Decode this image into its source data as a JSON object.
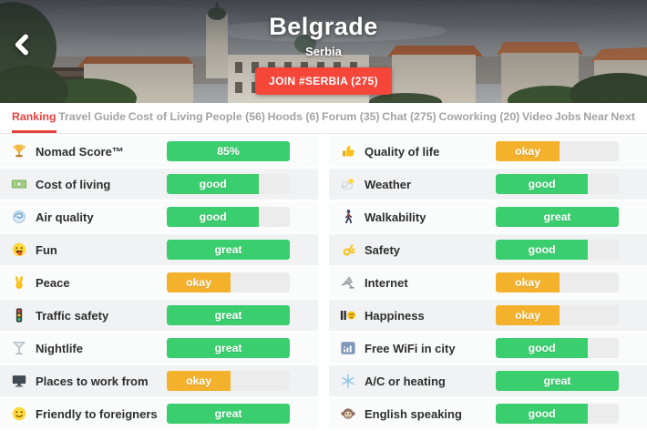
{
  "header": {
    "title": "Belgrade",
    "subtitle": "Serbia",
    "join_label": "JOIN #SERBIA (275)",
    "back_icon": "chevron-left-icon"
  },
  "tabs": [
    {
      "label": "Ranking",
      "active": true
    },
    {
      "label": "Travel Guide",
      "active": false
    },
    {
      "label": "Cost of Living",
      "active": false
    },
    {
      "label": "People (56)",
      "active": false
    },
    {
      "label": "Hoods (6)",
      "active": false
    },
    {
      "label": "Forum (35)",
      "active": false
    },
    {
      "label": "Chat (275)",
      "active": false
    },
    {
      "label": "Coworking (20)",
      "active": false
    },
    {
      "label": "Video",
      "active": false
    },
    {
      "label": "Jobs",
      "active": false
    },
    {
      "label": "Near",
      "active": false
    },
    {
      "label": "Next",
      "active": false
    }
  ],
  "colors": {
    "green": "#3bce6f",
    "yellow": "#f3b12c",
    "track": "#ececec",
    "tab_active": "#e8413c",
    "join_button": "#f5463a"
  },
  "ranking": {
    "columns": [
      [
        {
          "icon": "trophy-icon",
          "label": "Nomad Score™",
          "value": "85%",
          "color": "green",
          "fill_pct": 100
        },
        {
          "icon": "banknote-icon",
          "label": "Cost of living",
          "value": "good",
          "color": "green",
          "fill_pct": 75
        },
        {
          "icon": "air-quality-icon",
          "label": "Air quality",
          "value": "good",
          "color": "green",
          "fill_pct": 75
        },
        {
          "icon": "fun-face-icon",
          "label": "Fun",
          "value": "great",
          "color": "green",
          "fill_pct": 100
        },
        {
          "icon": "peace-hand-icon",
          "label": "Peace",
          "value": "okay",
          "color": "yellow",
          "fill_pct": 52
        },
        {
          "icon": "traffic-light-icon",
          "label": "Traffic safety",
          "value": "great",
          "color": "green",
          "fill_pct": 100
        },
        {
          "icon": "cocktail-icon",
          "label": "Nightlife",
          "value": "great",
          "color": "green",
          "fill_pct": 100
        },
        {
          "icon": "desktop-icon",
          "label": "Places to work from",
          "value": "okay",
          "color": "yellow",
          "fill_pct": 52
        },
        {
          "icon": "smiley-icon",
          "label": "Friendly to foreigners",
          "value": "great",
          "color": "green",
          "fill_pct": 100
        }
      ],
      [
        {
          "icon": "thumbs-up-icon",
          "label": "Quality of life",
          "value": "okay",
          "color": "yellow",
          "fill_pct": 52
        },
        {
          "icon": "cloud-sun-icon",
          "label": "Weather",
          "value": "good",
          "color": "green",
          "fill_pct": 75
        },
        {
          "icon": "walking-icon",
          "label": "Walkability",
          "value": "great",
          "color": "green",
          "fill_pct": 100
        },
        {
          "icon": "ok-hand-icon",
          "label": "Safety",
          "value": "good",
          "color": "green",
          "fill_pct": 75
        },
        {
          "icon": "satellite-icon",
          "label": "Internet",
          "value": "okay",
          "color": "yellow",
          "fill_pct": 52
        },
        {
          "icon": "happiness-face-icon",
          "label": "Happiness",
          "value": "okay",
          "color": "yellow",
          "fill_pct": 52
        },
        {
          "icon": "signal-bars-icon",
          "label": "Free WiFi in city",
          "value": "good",
          "color": "green",
          "fill_pct": 75
        },
        {
          "icon": "snowflake-icon",
          "label": "A/C or heating",
          "value": "great",
          "color": "green",
          "fill_pct": 100
        },
        {
          "icon": "monkey-icon",
          "label": "English speaking",
          "value": "good",
          "color": "green",
          "fill_pct": 75
        }
      ]
    ]
  }
}
